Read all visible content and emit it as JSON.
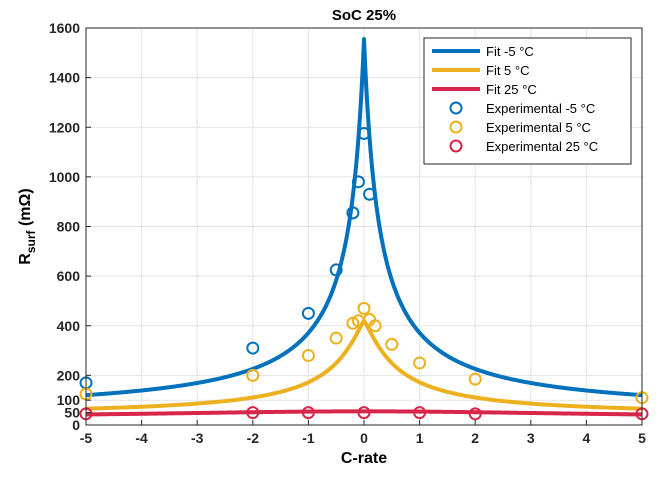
{
  "chart_data": {
    "type": "line",
    "title": "SoC 25%",
    "xlabel": "C-rate",
    "ylabel_main": "R",
    "ylabel_sub": "surf",
    "ylabel_unit": " (mΩ)",
    "xlim": [
      -5,
      5
    ],
    "ylim": [
      0,
      1600
    ],
    "xticks": [
      -5,
      -4,
      -3,
      -2,
      -1,
      0,
      1,
      2,
      3,
      4,
      5
    ],
    "yticks": [
      0,
      50,
      100,
      200,
      400,
      600,
      800,
      1000,
      1200,
      1400,
      1600
    ],
    "grid": true,
    "legend_position": "top-right",
    "fit_series": [
      {
        "name": "Fit -5 °C",
        "color": "#0072BD",
        "baseline": 40,
        "peak": 1555,
        "width": 0.28,
        "power": 1.0
      },
      {
        "name": "Fit 5 °C",
        "color": "#EDB120",
        "baseline": 38,
        "peak": 420,
        "width": 0.6,
        "power": 1.2
      },
      {
        "name": "Fit 25 °C",
        "color": "#D7264A",
        "baseline": 30,
        "peak": 55,
        "width": 5,
        "power": 2
      }
    ],
    "experimental_series": [
      {
        "name": "Experimental -5 °C",
        "color": "#0072BD",
        "points": [
          [
            -5,
            170
          ],
          [
            -2,
            310
          ],
          [
            -1,
            450
          ],
          [
            -0.5,
            625
          ],
          [
            -0.2,
            855
          ],
          [
            -0.1,
            980
          ],
          [
            0,
            1175
          ],
          [
            0.1,
            930
          ]
        ]
      },
      {
        "name": "Experimental 5 °C",
        "color": "#EDB120",
        "points": [
          [
            -5,
            125
          ],
          [
            -2,
            200
          ],
          [
            -1,
            280
          ],
          [
            -0.5,
            350
          ],
          [
            -0.2,
            410
          ],
          [
            -0.1,
            420
          ],
          [
            0,
            470
          ],
          [
            0.1,
            425
          ],
          [
            0.2,
            400
          ],
          [
            0.5,
            325
          ],
          [
            1,
            250
          ],
          [
            2,
            185
          ],
          [
            5,
            110
          ]
        ]
      },
      {
        "name": "Experimental 25 °C",
        "color": "#D7264A",
        "points": [
          [
            -5,
            45
          ],
          [
            -2,
            50
          ],
          [
            -1,
            50
          ],
          [
            0,
            50
          ],
          [
            1,
            50
          ],
          [
            2,
            45
          ],
          [
            5,
            45
          ]
        ]
      }
    ]
  }
}
